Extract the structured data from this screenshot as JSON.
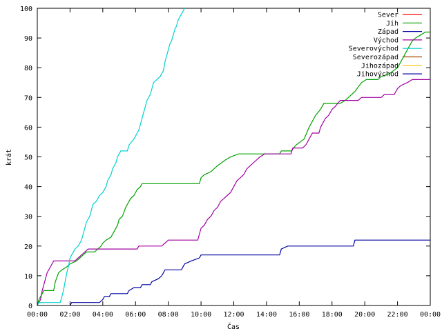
{
  "chart_data": {
    "type": "line",
    "title": "",
    "xlabel": "Čas",
    "ylabel": "krát",
    "xlim": [
      0,
      24
    ],
    "ylim": [
      0,
      100
    ],
    "grid": false,
    "legend_position": "top-right",
    "x_ticks": [
      {
        "v": 0,
        "label": "00:00"
      },
      {
        "v": 2,
        "label": "02:00"
      },
      {
        "v": 4,
        "label": "04:00"
      },
      {
        "v": 6,
        "label": "06:00"
      },
      {
        "v": 8,
        "label": "08:00"
      },
      {
        "v": 10,
        "label": "10:00"
      },
      {
        "v": 12,
        "label": "12:00"
      },
      {
        "v": 14,
        "label": "14:00"
      },
      {
        "v": 16,
        "label": "16:00"
      },
      {
        "v": 18,
        "label": "18:00"
      },
      {
        "v": 20,
        "label": "20:00"
      },
      {
        "v": 22,
        "label": "22:00"
      },
      {
        "v": 24,
        "label": "00:00"
      }
    ],
    "y_ticks": [
      {
        "v": 0,
        "label": "0"
      },
      {
        "v": 10,
        "label": "10"
      },
      {
        "v": 20,
        "label": "20"
      },
      {
        "v": 30,
        "label": "30"
      },
      {
        "v": 40,
        "label": "40"
      },
      {
        "v": 50,
        "label": "50"
      },
      {
        "v": 60,
        "label": "60"
      },
      {
        "v": 70,
        "label": "70"
      },
      {
        "v": 80,
        "label": "80"
      },
      {
        "v": 90,
        "label": "90"
      },
      {
        "v": 100,
        "label": "100"
      }
    ],
    "series": [
      {
        "name": "Sever",
        "color": "#ff0000",
        "points": []
      },
      {
        "name": "Jih",
        "color": "#00a000",
        "points": [
          [
            0,
            0
          ],
          [
            0.1,
            2
          ],
          [
            0.2,
            3
          ],
          [
            0.4,
            5
          ],
          [
            1.0,
            5
          ],
          [
            1.1,
            8
          ],
          [
            1.3,
            11
          ],
          [
            1.5,
            12
          ],
          [
            1.8,
            13
          ],
          [
            2.0,
            14
          ],
          [
            2.4,
            15
          ],
          [
            2.6,
            16
          ],
          [
            2.8,
            17
          ],
          [
            3.0,
            18
          ],
          [
            3.5,
            18
          ],
          [
            3.7,
            19
          ],
          [
            3.9,
            20
          ],
          [
            4.0,
            21
          ],
          [
            4.2,
            22
          ],
          [
            4.5,
            23
          ],
          [
            4.7,
            25
          ],
          [
            4.9,
            27
          ],
          [
            5.0,
            29
          ],
          [
            5.2,
            30
          ],
          [
            5.4,
            33
          ],
          [
            5.5,
            34
          ],
          [
            5.7,
            36
          ],
          [
            5.9,
            37
          ],
          [
            6.0,
            38
          ],
          [
            6.1,
            39
          ],
          [
            6.3,
            40
          ],
          [
            6.4,
            41
          ],
          [
            9.9,
            41
          ],
          [
            10.0,
            43
          ],
          [
            10.2,
            44
          ],
          [
            10.6,
            45
          ],
          [
            10.8,
            46
          ],
          [
            11.0,
            47
          ],
          [
            11.5,
            49
          ],
          [
            11.8,
            50
          ],
          [
            12.3,
            51
          ],
          [
            14.8,
            51
          ],
          [
            14.9,
            52
          ],
          [
            15.5,
            52
          ],
          [
            15.8,
            54
          ],
          [
            16.3,
            56
          ],
          [
            16.6,
            60
          ],
          [
            16.8,
            62
          ],
          [
            17.0,
            64
          ],
          [
            17.3,
            66
          ],
          [
            17.5,
            68
          ],
          [
            18.5,
            68
          ],
          [
            18.8,
            69
          ],
          [
            19.0,
            70
          ],
          [
            19.4,
            72
          ],
          [
            19.8,
            75
          ],
          [
            20.1,
            76
          ],
          [
            20.8,
            76
          ],
          [
            21.0,
            77
          ],
          [
            21.5,
            78
          ],
          [
            22.0,
            80
          ],
          [
            22.3,
            83
          ],
          [
            22.6,
            86
          ],
          [
            22.9,
            89
          ],
          [
            23.1,
            90
          ],
          [
            23.4,
            91
          ],
          [
            23.7,
            92
          ],
          [
            24,
            92
          ]
        ]
      },
      {
        "name": "Západ",
        "color": "#0000a0",
        "points": [
          [
            2.0,
            0
          ],
          [
            2.1,
            1
          ],
          [
            3.8,
            1
          ],
          [
            4.0,
            2
          ],
          [
            4.1,
            3
          ],
          [
            4.4,
            3
          ],
          [
            4.5,
            4
          ],
          [
            5.5,
            4
          ],
          [
            5.6,
            5
          ],
          [
            5.9,
            6
          ],
          [
            6.3,
            6
          ],
          [
            6.4,
            7
          ],
          [
            6.9,
            7
          ],
          [
            7.0,
            8
          ],
          [
            7.4,
            9
          ],
          [
            7.6,
            10
          ],
          [
            7.8,
            12
          ],
          [
            8.8,
            12
          ],
          [
            9.0,
            14
          ],
          [
            9.4,
            15
          ],
          [
            9.9,
            16
          ],
          [
            10.0,
            17
          ],
          [
            14.8,
            17
          ],
          [
            14.9,
            19
          ],
          [
            15.3,
            20
          ],
          [
            19.3,
            20
          ],
          [
            19.4,
            22
          ],
          [
            24,
            22
          ]
        ]
      },
      {
        "name": "Východ",
        "color": "#a000a0",
        "points": [
          [
            0,
            0
          ],
          [
            0.2,
            2
          ],
          [
            0.3,
            5
          ],
          [
            0.4,
            7
          ],
          [
            0.5,
            9
          ],
          [
            0.6,
            11
          ],
          [
            0.8,
            13
          ],
          [
            1.0,
            15
          ],
          [
            2.3,
            15
          ],
          [
            2.5,
            16
          ],
          [
            2.7,
            17
          ],
          [
            2.9,
            18
          ],
          [
            3.1,
            19
          ],
          [
            6.1,
            19
          ],
          [
            6.2,
            20
          ],
          [
            7.6,
            20
          ],
          [
            7.8,
            21
          ],
          [
            8.0,
            22
          ],
          [
            9.8,
            22
          ],
          [
            9.9,
            24
          ],
          [
            10.0,
            26
          ],
          [
            10.2,
            27
          ],
          [
            10.4,
            29
          ],
          [
            10.6,
            30
          ],
          [
            10.8,
            32
          ],
          [
            11.0,
            33
          ],
          [
            11.2,
            35
          ],
          [
            11.4,
            36
          ],
          [
            11.6,
            37
          ],
          [
            11.8,
            38
          ],
          [
            12.0,
            40
          ],
          [
            12.2,
            42
          ],
          [
            12.4,
            43
          ],
          [
            12.6,
            44
          ],
          [
            12.8,
            46
          ],
          [
            13.0,
            47
          ],
          [
            13.2,
            48
          ],
          [
            13.4,
            49
          ],
          [
            13.6,
            50
          ],
          [
            13.9,
            51
          ],
          [
            15.5,
            51
          ],
          [
            15.6,
            53
          ],
          [
            16.2,
            53
          ],
          [
            16.4,
            54
          ],
          [
            16.6,
            56
          ],
          [
            16.8,
            58
          ],
          [
            17.2,
            58
          ],
          [
            17.3,
            60
          ],
          [
            17.6,
            63
          ],
          [
            17.8,
            64
          ],
          [
            18.0,
            66
          ],
          [
            18.2,
            67
          ],
          [
            18.5,
            69
          ],
          [
            19.6,
            69
          ],
          [
            19.8,
            70
          ],
          [
            21.0,
            70
          ],
          [
            21.2,
            71
          ],
          [
            21.8,
            71
          ],
          [
            22.0,
            73
          ],
          [
            22.2,
            74
          ],
          [
            22.6,
            75
          ],
          [
            22.9,
            76
          ],
          [
            24,
            76
          ]
        ]
      },
      {
        "name": "Severovýchod",
        "color": "#00d0d0",
        "points": [
          [
            0,
            0
          ],
          [
            0.1,
            1
          ],
          [
            1.4,
            1
          ],
          [
            1.5,
            3
          ],
          [
            1.6,
            5
          ],
          [
            1.7,
            8
          ],
          [
            1.8,
            11
          ],
          [
            1.9,
            13
          ],
          [
            2.0,
            16
          ],
          [
            2.1,
            17
          ],
          [
            2.2,
            18
          ],
          [
            2.3,
            19
          ],
          [
            2.5,
            20
          ],
          [
            2.7,
            22
          ],
          [
            2.8,
            24
          ],
          [
            2.9,
            26
          ],
          [
            3.0,
            28
          ],
          [
            3.2,
            30
          ],
          [
            3.3,
            32
          ],
          [
            3.4,
            34
          ],
          [
            3.6,
            35
          ],
          [
            3.7,
            36
          ],
          [
            3.8,
            37
          ],
          [
            4.0,
            38
          ],
          [
            4.2,
            40
          ],
          [
            4.3,
            42
          ],
          [
            4.5,
            44
          ],
          [
            4.6,
            46
          ],
          [
            4.8,
            48
          ],
          [
            4.9,
            50
          ],
          [
            5.1,
            52
          ],
          [
            5.5,
            52
          ],
          [
            5.6,
            54
          ],
          [
            5.9,
            56
          ],
          [
            6.0,
            57
          ],
          [
            6.2,
            59
          ],
          [
            6.3,
            61
          ],
          [
            6.4,
            63
          ],
          [
            6.5,
            65
          ],
          [
            6.6,
            67
          ],
          [
            6.7,
            69
          ],
          [
            6.9,
            71
          ],
          [
            7.0,
            73
          ],
          [
            7.1,
            75
          ],
          [
            7.3,
            76
          ],
          [
            7.5,
            77
          ],
          [
            7.7,
            79
          ],
          [
            7.8,
            82
          ],
          [
            7.9,
            84
          ],
          [
            8.0,
            86
          ],
          [
            8.1,
            88
          ],
          [
            8.2,
            89
          ],
          [
            8.3,
            91
          ],
          [
            8.4,
            93
          ],
          [
            8.5,
            94
          ],
          [
            8.6,
            96
          ],
          [
            8.8,
            98
          ],
          [
            8.9,
            99
          ],
          [
            9.0,
            100
          ]
        ]
      },
      {
        "name": "Severozápad",
        "color": "#a04000",
        "points": []
      },
      {
        "name": "Jihozápad",
        "color": "#ffc000",
        "points": []
      },
      {
        "name": "Jihovýchod",
        "color": "#0000a0",
        "points": []
      }
    ]
  }
}
